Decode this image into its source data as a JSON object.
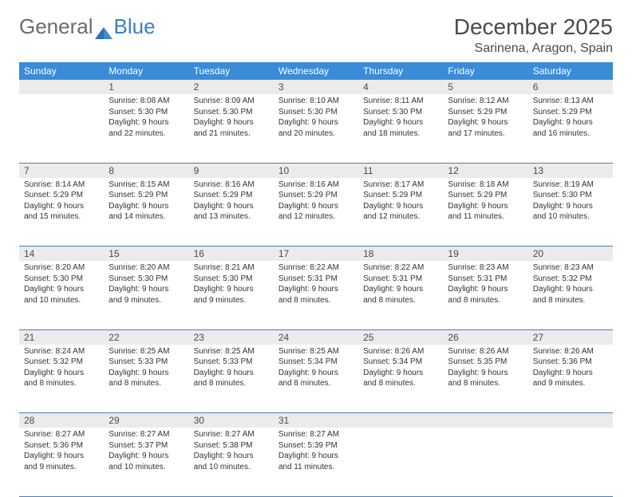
{
  "brand": {
    "part1": "General",
    "part2": "Blue"
  },
  "title": "December 2025",
  "location": "Sarinena, Aragon, Spain",
  "colors": {
    "header_bg": "#3a8bd8",
    "header_text": "#ffffff",
    "daynum_bg": "#ebebeb",
    "rule": "#4a7db5",
    "text": "#333333",
    "title_text": "#4a4a4a"
  },
  "columns": [
    "Sunday",
    "Monday",
    "Tuesday",
    "Wednesday",
    "Thursday",
    "Friday",
    "Saturday"
  ],
  "weeks": [
    [
      {
        "n": "",
        "lines": []
      },
      {
        "n": "1",
        "lines": [
          "Sunrise: 8:08 AM",
          "Sunset: 5:30 PM",
          "Daylight: 9 hours and 22 minutes."
        ]
      },
      {
        "n": "2",
        "lines": [
          "Sunrise: 8:09 AM",
          "Sunset: 5:30 PM",
          "Daylight: 9 hours and 21 minutes."
        ]
      },
      {
        "n": "3",
        "lines": [
          "Sunrise: 8:10 AM",
          "Sunset: 5:30 PM",
          "Daylight: 9 hours and 20 minutes."
        ]
      },
      {
        "n": "4",
        "lines": [
          "Sunrise: 8:11 AM",
          "Sunset: 5:30 PM",
          "Daylight: 9 hours and 18 minutes."
        ]
      },
      {
        "n": "5",
        "lines": [
          "Sunrise: 8:12 AM",
          "Sunset: 5:29 PM",
          "Daylight: 9 hours and 17 minutes."
        ]
      },
      {
        "n": "6",
        "lines": [
          "Sunrise: 8:13 AM",
          "Sunset: 5:29 PM",
          "Daylight: 9 hours and 16 minutes."
        ]
      }
    ],
    [
      {
        "n": "7",
        "lines": [
          "Sunrise: 8:14 AM",
          "Sunset: 5:29 PM",
          "Daylight: 9 hours and 15 minutes."
        ]
      },
      {
        "n": "8",
        "lines": [
          "Sunrise: 8:15 AM",
          "Sunset: 5:29 PM",
          "Daylight: 9 hours and 14 minutes."
        ]
      },
      {
        "n": "9",
        "lines": [
          "Sunrise: 8:16 AM",
          "Sunset: 5:29 PM",
          "Daylight: 9 hours and 13 minutes."
        ]
      },
      {
        "n": "10",
        "lines": [
          "Sunrise: 8:16 AM",
          "Sunset: 5:29 PM",
          "Daylight: 9 hours and 12 minutes."
        ]
      },
      {
        "n": "11",
        "lines": [
          "Sunrise: 8:17 AM",
          "Sunset: 5:29 PM",
          "Daylight: 9 hours and 12 minutes."
        ]
      },
      {
        "n": "12",
        "lines": [
          "Sunrise: 8:18 AM",
          "Sunset: 5:29 PM",
          "Daylight: 9 hours and 11 minutes."
        ]
      },
      {
        "n": "13",
        "lines": [
          "Sunrise: 8:19 AM",
          "Sunset: 5:30 PM",
          "Daylight: 9 hours and 10 minutes."
        ]
      }
    ],
    [
      {
        "n": "14",
        "lines": [
          "Sunrise: 8:20 AM",
          "Sunset: 5:30 PM",
          "Daylight: 9 hours and 10 minutes."
        ]
      },
      {
        "n": "15",
        "lines": [
          "Sunrise: 8:20 AM",
          "Sunset: 5:30 PM",
          "Daylight: 9 hours and 9 minutes."
        ]
      },
      {
        "n": "16",
        "lines": [
          "Sunrise: 8:21 AM",
          "Sunset: 5:30 PM",
          "Daylight: 9 hours and 9 minutes."
        ]
      },
      {
        "n": "17",
        "lines": [
          "Sunrise: 8:22 AM",
          "Sunset: 5:31 PM",
          "Daylight: 9 hours and 8 minutes."
        ]
      },
      {
        "n": "18",
        "lines": [
          "Sunrise: 8:22 AM",
          "Sunset: 5:31 PM",
          "Daylight: 9 hours and 8 minutes."
        ]
      },
      {
        "n": "19",
        "lines": [
          "Sunrise: 8:23 AM",
          "Sunset: 5:31 PM",
          "Daylight: 9 hours and 8 minutes."
        ]
      },
      {
        "n": "20",
        "lines": [
          "Sunrise: 8:23 AM",
          "Sunset: 5:32 PM",
          "Daylight: 9 hours and 8 minutes."
        ]
      }
    ],
    [
      {
        "n": "21",
        "lines": [
          "Sunrise: 8:24 AM",
          "Sunset: 5:32 PM",
          "Daylight: 9 hours and 8 minutes."
        ]
      },
      {
        "n": "22",
        "lines": [
          "Sunrise: 8:25 AM",
          "Sunset: 5:33 PM",
          "Daylight: 9 hours and 8 minutes."
        ]
      },
      {
        "n": "23",
        "lines": [
          "Sunrise: 8:25 AM",
          "Sunset: 5:33 PM",
          "Daylight: 9 hours and 8 minutes."
        ]
      },
      {
        "n": "24",
        "lines": [
          "Sunrise: 8:25 AM",
          "Sunset: 5:34 PM",
          "Daylight: 9 hours and 8 minutes."
        ]
      },
      {
        "n": "25",
        "lines": [
          "Sunrise: 8:26 AM",
          "Sunset: 5:34 PM",
          "Daylight: 9 hours and 8 minutes."
        ]
      },
      {
        "n": "26",
        "lines": [
          "Sunrise: 8:26 AM",
          "Sunset: 5:35 PM",
          "Daylight: 9 hours and 8 minutes."
        ]
      },
      {
        "n": "27",
        "lines": [
          "Sunrise: 8:26 AM",
          "Sunset: 5:36 PM",
          "Daylight: 9 hours and 9 minutes."
        ]
      }
    ],
    [
      {
        "n": "28",
        "lines": [
          "Sunrise: 8:27 AM",
          "Sunset: 5:36 PM",
          "Daylight: 9 hours and 9 minutes."
        ]
      },
      {
        "n": "29",
        "lines": [
          "Sunrise: 8:27 AM",
          "Sunset: 5:37 PM",
          "Daylight: 9 hours and 10 minutes."
        ]
      },
      {
        "n": "30",
        "lines": [
          "Sunrise: 8:27 AM",
          "Sunset: 5:38 PM",
          "Daylight: 9 hours and 10 minutes."
        ]
      },
      {
        "n": "31",
        "lines": [
          "Sunrise: 8:27 AM",
          "Sunset: 5:39 PM",
          "Daylight: 9 hours and 11 minutes."
        ]
      },
      {
        "n": "",
        "lines": []
      },
      {
        "n": "",
        "lines": []
      },
      {
        "n": "",
        "lines": []
      }
    ]
  ]
}
